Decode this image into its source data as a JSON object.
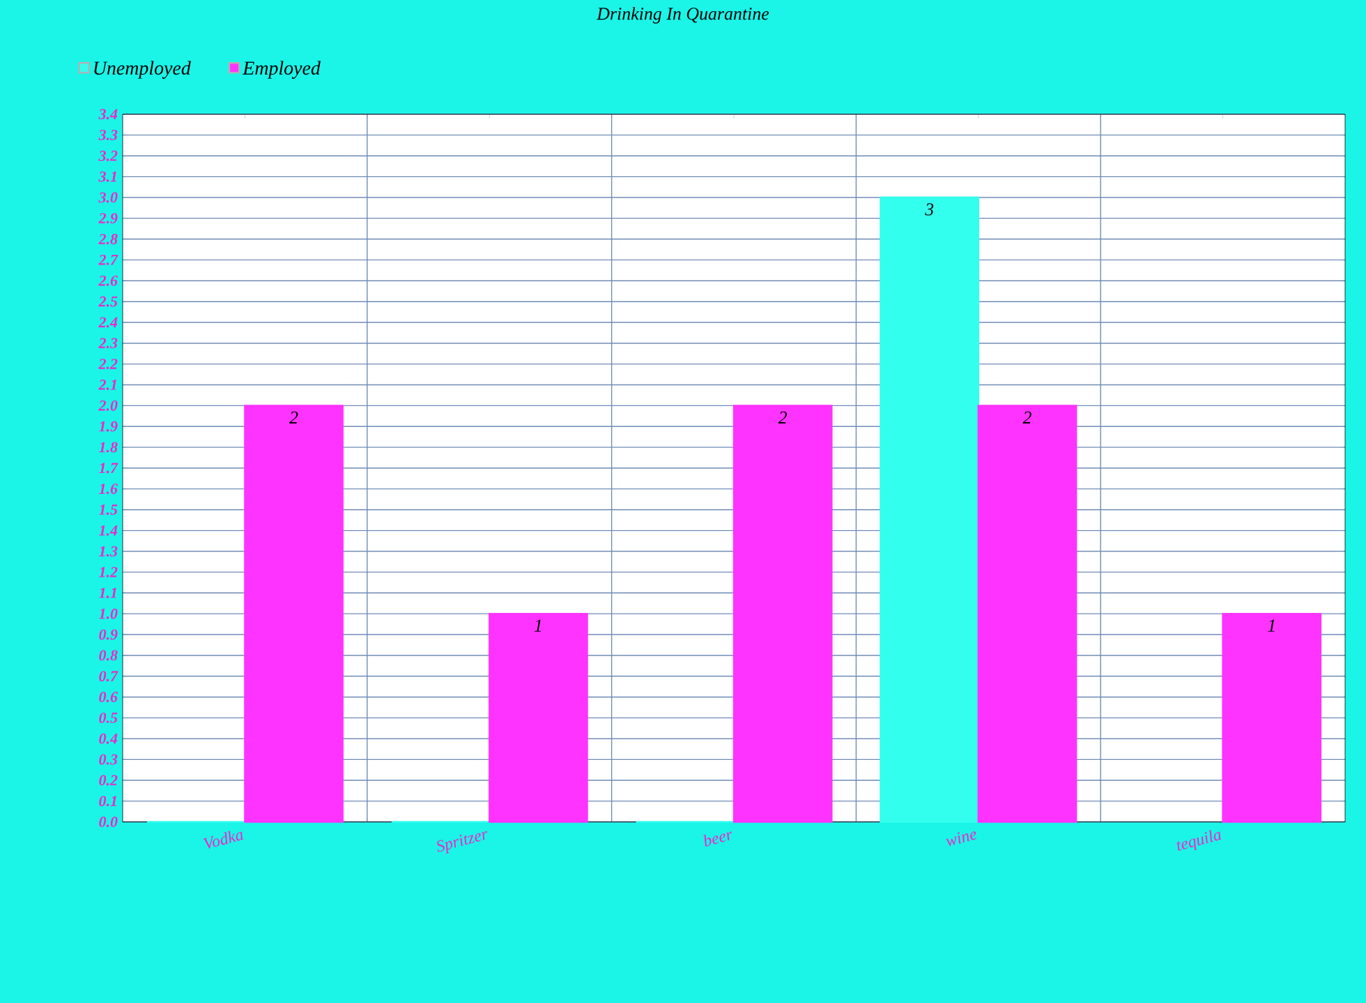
{
  "chart_data": {
    "type": "bar",
    "title": "Drinking In Quarantine",
    "categories": [
      "Vodka",
      "Spritzer",
      "beer",
      "wine",
      "tequila"
    ],
    "series": [
      {
        "name": "Unemployed",
        "color": "#33ffee",
        "values": [
          0,
          0,
          0,
          3,
          null
        ],
        "value_labels": [
          null,
          null,
          null,
          "3",
          null
        ]
      },
      {
        "name": "Employed",
        "color": "#ff33ff",
        "values": [
          2,
          1,
          2,
          2,
          1
        ],
        "value_labels": [
          "2",
          "1",
          "2",
          "2",
          "1"
        ]
      }
    ],
    "ylim": [
      0,
      3.4
    ],
    "yticks": [
      {
        "value": 0,
        "label": "0.0"
      },
      {
        "value": 0.1,
        "label": "0.1"
      },
      {
        "value": 0.2,
        "label": "0.2"
      },
      {
        "value": 0.3,
        "label": "0.3"
      },
      {
        "value": 0.4,
        "label": "0.4"
      },
      {
        "value": 0.5,
        "label": "0.5"
      },
      {
        "value": 0.6,
        "label": "0.6"
      },
      {
        "value": 0.7,
        "label": "0.7"
      },
      {
        "value": 0.8,
        "label": "0.8"
      },
      {
        "value": 0.9,
        "label": "0.9"
      },
      {
        "value": 1,
        "label": "1.0"
      },
      {
        "value": 1.1,
        "label": "1.1"
      },
      {
        "value": 1.2,
        "label": "1.2"
      },
      {
        "value": 1.3,
        "label": "1.3"
      },
      {
        "value": 1.4,
        "label": "1.4"
      },
      {
        "value": 1.5,
        "label": "1.5"
      },
      {
        "value": 1.6,
        "label": "1.6"
      },
      {
        "value": 1.7,
        "label": "1.7"
      },
      {
        "value": 1.8,
        "label": "1.8"
      },
      {
        "value": 1.9,
        "label": "1.9"
      },
      {
        "value": 2,
        "label": "2.0"
      },
      {
        "value": 2.1,
        "label": "2.1"
      },
      {
        "value": 2.2,
        "label": "2.2"
      },
      {
        "value": 2.3,
        "label": "2.3"
      },
      {
        "value": 2.4,
        "label": "2.4"
      },
      {
        "value": 2.5,
        "label": "2.5"
      },
      {
        "value": 2.6,
        "label": "2.6"
      },
      {
        "value": 2.7,
        "label": "2.7"
      },
      {
        "value": 2.8,
        "label": "2.8"
      },
      {
        "value": 2.9,
        "label": "2.9"
      },
      {
        "value": 3,
        "label": "3.0"
      },
      {
        "value": 3.1,
        "label": "3.1"
      },
      {
        "value": 3.2,
        "label": "3.2"
      },
      {
        "value": 3.3,
        "label": "3.3"
      },
      {
        "value": 3.4,
        "label": "3.4"
      }
    ],
    "grid": true,
    "legend": "top left"
  }
}
